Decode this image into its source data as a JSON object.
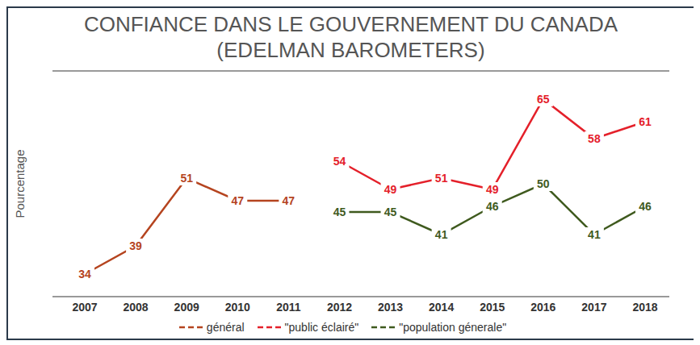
{
  "chart_data": {
    "type": "line",
    "title": "CONFIANCE DANS LE GOUVERNEMENT DU CANADA\n(EDELMAN BAROMETERS)",
    "ylabel": "Pourcentage",
    "categories": [
      "2007",
      "2008",
      "2009",
      "2010",
      "2011",
      "2012",
      "2013",
      "2014",
      "2015",
      "2016",
      "2017",
      "2018"
    ],
    "series": [
      {
        "name": "général",
        "color": "#b5441f",
        "values": [
          34,
          39,
          51,
          47,
          47,
          null,
          null,
          null,
          null,
          null,
          null,
          null
        ]
      },
      {
        "name": "\"public éclairé\"",
        "color": "#e4202a",
        "values": [
          null,
          null,
          null,
          null,
          null,
          54,
          49,
          51,
          49,
          65,
          58,
          61
        ]
      },
      {
        "name": "\"population génerale\"",
        "color": "#3f5a1e",
        "values": [
          null,
          null,
          null,
          null,
          null,
          45,
          45,
          41,
          46,
          50,
          41,
          46
        ]
      }
    ],
    "ylim": [
      30,
      70
    ],
    "yticks": [
      30,
      35,
      40,
      45,
      50,
      55,
      60,
      65,
      70
    ],
    "grid": true,
    "legend": "bottom",
    "data_labels": true,
    "tick_labels": "x",
    "marker": "none"
  }
}
